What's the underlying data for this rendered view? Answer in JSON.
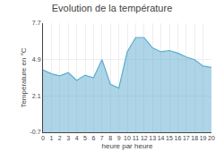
{
  "chart_data": {
    "type": "area",
    "title": "Evolution de la température",
    "xlabel": "heure par heure",
    "ylabel": "Température en °C",
    "x": [
      0,
      1,
      2,
      3,
      4,
      5,
      6,
      7,
      8,
      9,
      10,
      11,
      12,
      13,
      14,
      15,
      16,
      17,
      18,
      19,
      20
    ],
    "values": [
      4.1,
      3.8,
      3.65,
      3.9,
      3.3,
      3.7,
      3.5,
      4.9,
      3.0,
      2.7,
      5.5,
      6.6,
      6.6,
      5.8,
      5.5,
      5.6,
      5.4,
      5.1,
      4.9,
      4.4,
      4.3
    ],
    "color": "#5bacd0",
    "xlim": [
      0,
      20
    ],
    "xticks": [
      0,
      1,
      2,
      3,
      4,
      5,
      6,
      7,
      8,
      9,
      10,
      11,
      12,
      13,
      14,
      15,
      16,
      17,
      18,
      19,
      20
    ],
    "ylim": [
      -0.7,
      7.7
    ],
    "yticks": [
      -0.7,
      2.1,
      4.9,
      7.7
    ],
    "grid": true
  }
}
